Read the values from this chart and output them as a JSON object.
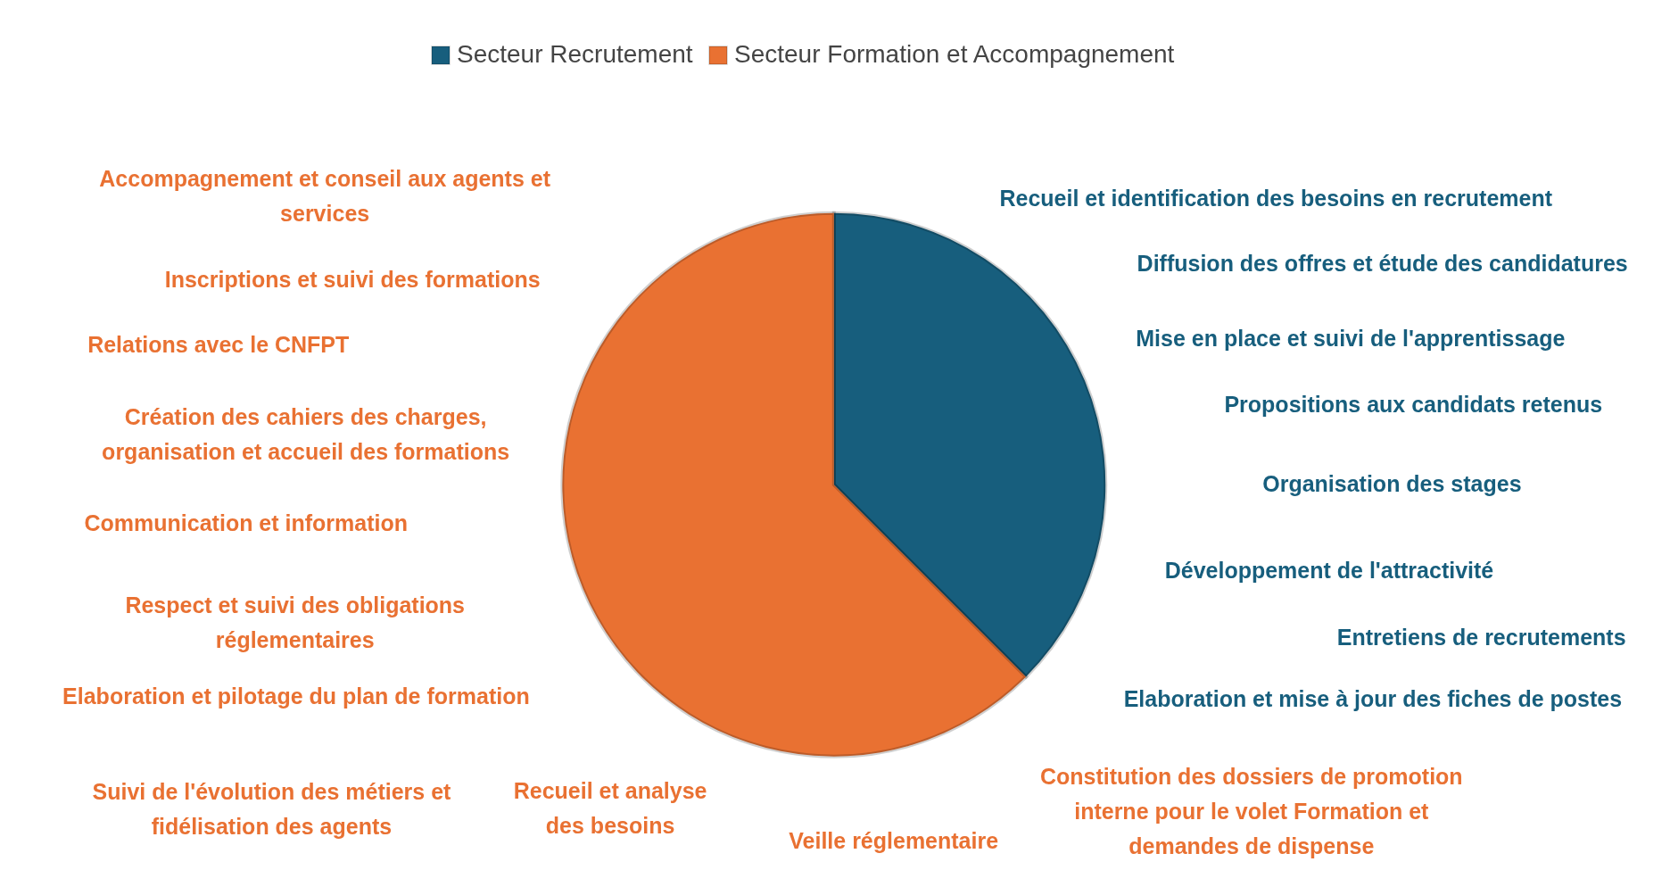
{
  "chart_data": {
    "type": "pie",
    "categories": [
      "Secteur Recrutement",
      "Secteur Formation et Accompagnement"
    ],
    "values": [
      37.5,
      62.5
    ],
    "colors": [
      "#175e7d",
      "#e97132"
    ],
    "legend": "top",
    "annotations": [
      "Recueil et identification des besoins en recrutement",
      "Diffusion des offres et étude des candidatures",
      "Mise en place et suivi de l'apprentissage",
      "Propositions aux candidats retenus",
      "Organisation des stages",
      "Développement de l'attractivité",
      "Entretiens de recrutements",
      "Elaboration et mise à jour des fiches de postes",
      "Accompagnement et conseil aux agents et\nservices",
      "Inscriptions et suivi des formations",
      "Relations avec le CNFPT",
      "Création des cahiers des charges,\norganisation et accueil des formations",
      "Communication et information",
      "Respect et suivi des obligations\nréglementaires",
      "Elaboration et pilotage du plan de formation",
      "Suivi de l'évolution des métiers et\nfidélisation des agents",
      "Recueil et analyse\ndes besoins",
      "Veille réglementaire",
      "Constitution des dossiers de promotion\ninterne pour le volet Formation et\ndemandes de dispense"
    ]
  }
}
